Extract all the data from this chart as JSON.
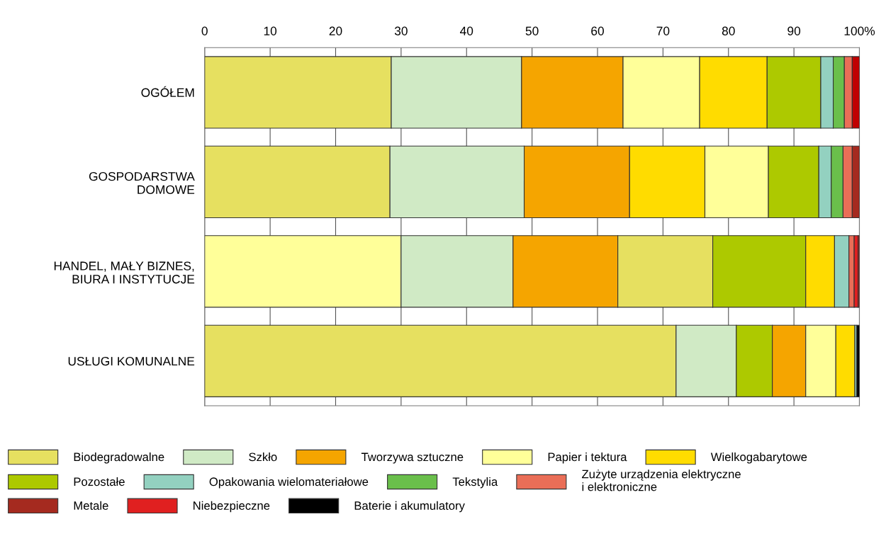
{
  "chart_data": {
    "type": "bar",
    "orientation": "horizontal",
    "stacked": true,
    "categories": [
      "OGÓŁEM",
      "GOSPODARSTWA\nDOMOWE",
      "HANDEL, MAŁY BIZNES,\nBIURA I INSTYTUCJE",
      "USŁUGI KOMUNALNE"
    ],
    "series": [
      {
        "colors": [
          "#e6e060",
          "#e6e060",
          "#ffff99",
          "#e6e060"
        ],
        "values": [
          28.5,
          28.3,
          30.0,
          72.0
        ]
      },
      {
        "colors": [
          "#d0eac5",
          "#d0eac5",
          "#d0eac5",
          "#d0eac5"
        ],
        "values": [
          19.9,
          20.5,
          17.1,
          9.2
        ]
      },
      {
        "colors": [
          "#f5a500",
          "#f5a500",
          "#f5a500",
          "#adc900"
        ],
        "values": [
          15.5,
          16.1,
          16.0,
          5.5
        ]
      },
      {
        "colors": [
          "#ffff99",
          "#ffdc00",
          "#e6e060",
          "#f5a500"
        ],
        "values": [
          11.7,
          11.5,
          14.5,
          5.1
        ]
      },
      {
        "colors": [
          "#ffdc00",
          "#ffff99",
          "#adc900",
          "#ffff99"
        ],
        "values": [
          10.3,
          9.7,
          14.2,
          4.6
        ]
      },
      {
        "colors": [
          "#adc900",
          "#adc900",
          "#ffdc00",
          "#ffdc00"
        ],
        "values": [
          8.2,
          7.7,
          4.4,
          2.9
        ]
      },
      {
        "colors": [
          "#93d1c0",
          "#93d1c0",
          "#93d1c0",
          "#93d1c0"
        ],
        "values": [
          1.9,
          1.9,
          2.2,
          0.3
        ]
      },
      {
        "colors": [
          "#6abf4b",
          "#6abf4b",
          "#ea6e57",
          "#000000"
        ],
        "values": [
          1.7,
          1.8,
          0.8,
          0.4
        ]
      },
      {
        "colors": [
          "#ea6e57",
          "#ea6e57",
          "#e02020",
          null
        ],
        "values": [
          1.2,
          1.4,
          0.6,
          null
        ]
      },
      {
        "colors": [
          "#c00000",
          "#a52a1f",
          "#a52a1f",
          null
        ],
        "values": [
          1.1,
          1.1,
          0.2,
          null
        ]
      },
      {
        "name": "Biodegradowalne",
        "color": "#e6e060",
        "values": [
          null,
          null,
          null,
          null
        ]
      },
      {
        "name": "Szkło",
        "color": "#d0eac5",
        "values": [
          null,
          null,
          null,
          null
        ]
      },
      {
        "name": "Tworzywa sztuczne",
        "color": "#f5a500",
        "values": [
          null,
          null,
          null,
          null
        ]
      },
      {
        "name": "Papier i tektura",
        "color": "#ffff99",
        "values": [
          null,
          null,
          null,
          null
        ]
      },
      {
        "name": "Wielkogabarytowe",
        "color": "#ffdc00",
        "values": [
          null,
          null,
          null,
          null
        ]
      },
      {
        "name": "Pozostałe",
        "color": "#adc900",
        "values": [
          null,
          null,
          null,
          null
        ]
      },
      {
        "name": "Opakowania wielomateriałowe",
        "color": "#93d1c0",
        "values": [
          null,
          null,
          null,
          null
        ]
      },
      {
        "name": "Tekstylia",
        "color": "#6abf4b",
        "values": [
          null,
          null,
          null,
          null
        ]
      },
      {
        "name": "Zużyte urządzenia elektryczne\ni elektroniczne",
        "color": "#ea6e57",
        "values": [
          null,
          null,
          null,
          null
        ]
      },
      {
        "name": "Metale",
        "color": "#a52a1f",
        "values": [
          null,
          null,
          null,
          null
        ]
      },
      {
        "name": "Niebezpieczne",
        "color": "#e02020",
        "values": [
          null,
          null,
          null,
          null
        ]
      },
      {
        "name": "Baterie i akumulatory",
        "color": "#000000",
        "values": [
          null,
          null,
          null,
          null
        ]
      }
    ],
    "xlim": [
      0,
      100
    ],
    "xticks": [
      0,
      10,
      20,
      30,
      40,
      50,
      60,
      70,
      80,
      90,
      {
        "value": 100,
        "label": "100%"
      }
    ],
    "grid": "x",
    "legend": "bottom"
  }
}
